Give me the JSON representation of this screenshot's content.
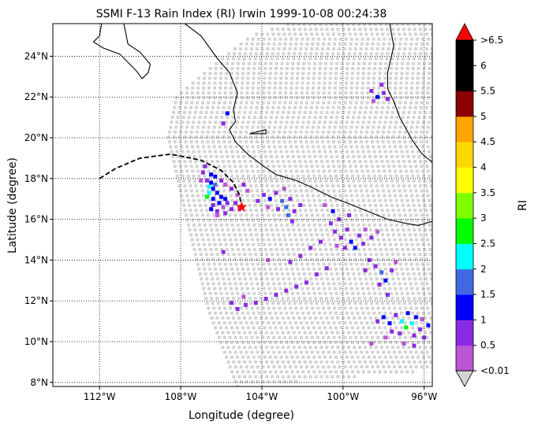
{
  "chart_data": {
    "type": "heatmap",
    "title": "SSMI F-13 Rain Index (RI) Irwin 1999-10-08 00:24:38",
    "xlabel": "Longitude (degree)",
    "ylabel": "Latitude (degree)",
    "xlim": [
      -114.3,
      -95.6
    ],
    "ylim": [
      7.8,
      25.6
    ],
    "x_ticks": [
      {
        "value": -112,
        "label": "112°W"
      },
      {
        "value": -108,
        "label": "108°W"
      },
      {
        "value": -104,
        "label": "104°W"
      },
      {
        "value": -100,
        "label": "100°W"
      },
      {
        "value": -96,
        "label": "96°W"
      }
    ],
    "y_ticks": [
      {
        "value": 8,
        "label": "8°N"
      },
      {
        "value": 10,
        "label": "10°N"
      },
      {
        "value": 12,
        "label": "12°N"
      },
      {
        "value": 14,
        "label": "14°N"
      },
      {
        "value": 16,
        "label": "16°N"
      },
      {
        "value": 18,
        "label": "18°N"
      },
      {
        "value": 20,
        "label": "20°N"
      },
      {
        "value": 22,
        "label": "22°N"
      },
      {
        "value": 24,
        "label": "24°N"
      }
    ],
    "grid": "dotted",
    "no_rain_color": "#d3d3d3",
    "colorbar": {
      "label": "RI",
      "levels": [
        0.01,
        0.5,
        1,
        1.5,
        2,
        2.5,
        3,
        3.5,
        4,
        4.5,
        5,
        5.5,
        6,
        6.5
      ],
      "colors": [
        "#ba55d3",
        "#8a2be2",
        "#0000ff",
        "#4169e1",
        "#00ffff",
        "#00ff00",
        "#7fff00",
        "#ffff00",
        "#ffd700",
        "#ffa500",
        "#8b0000",
        "#000000",
        "#000000"
      ],
      "under_color": "#d3d3d3",
      "over_color": "#ff0000",
      "tick_labels": [
        {
          "value": 0.01,
          "label": "<0.01"
        },
        {
          "value": 0.5,
          "label": "0.5"
        },
        {
          "value": 1,
          "label": "1"
        },
        {
          "value": 1.5,
          "label": "1.5"
        },
        {
          "value": 2,
          "label": "2"
        },
        {
          "value": 2.5,
          "label": "2.5"
        },
        {
          "value": 3,
          "label": "3"
        },
        {
          "value": 3.5,
          "label": "3.5"
        },
        {
          "value": 4,
          "label": "4"
        },
        {
          "value": 4.5,
          "label": "4.5"
        },
        {
          "value": 5,
          "label": "5"
        },
        {
          "value": 5.5,
          "label": "5.5"
        },
        {
          "value": 6,
          "label": "6"
        },
        {
          "value": 6.5,
          "label": ">6.5"
        }
      ]
    },
    "swath": {
      "west_edge": [
        [
          -105.2,
          7.8
        ],
        [
          -106.6,
          11.5
        ],
        [
          -107.8,
          16.5
        ],
        [
          -108.6,
          20.0
        ],
        [
          -108.2,
          22.0
        ],
        [
          -106.3,
          23.6
        ],
        [
          -104.5,
          25.0
        ],
        [
          -102.6,
          25.6
        ]
      ],
      "south_edge": [
        [
          -105.2,
          7.8
        ],
        [
          -95.6,
          8.6
        ]
      ]
    },
    "coastline": [
      [
        [
          -111.9,
          25.6
        ],
        [
          -112.0,
          25.0
        ],
        [
          -112.3,
          24.7
        ],
        [
          -111.8,
          24.4
        ],
        [
          -111.0,
          24.1
        ],
        [
          -110.2,
          23.3
        ],
        [
          -109.9,
          22.9
        ],
        [
          -109.6,
          23.2
        ],
        [
          -109.5,
          23.6
        ],
        [
          -110.0,
          24.2
        ],
        [
          -110.6,
          24.6
        ],
        [
          -110.8,
          25.6
        ]
      ],
      [
        [
          -107.8,
          25.6
        ],
        [
          -107.0,
          25.0
        ],
        [
          -106.2,
          23.9
        ],
        [
          -105.6,
          23.2
        ],
        [
          -105.2,
          22.2
        ],
        [
          -105.4,
          21.4
        ],
        [
          -105.3,
          20.8
        ],
        [
          -105.6,
          20.4
        ],
        [
          -105.3,
          19.8
        ],
        [
          -104.7,
          19.2
        ],
        [
          -103.9,
          18.6
        ],
        [
          -103.3,
          18.2
        ],
        [
          -102.3,
          17.9
        ],
        [
          -101.6,
          17.6
        ],
        [
          -100.6,
          17.1
        ],
        [
          -99.8,
          16.8
        ],
        [
          -98.8,
          16.4
        ],
        [
          -97.8,
          16.0
        ],
        [
          -96.9,
          15.8
        ],
        [
          -96.3,
          15.7
        ],
        [
          -95.6,
          15.9
        ]
      ],
      [
        [
          -97.7,
          25.6
        ],
        [
          -97.5,
          24.5
        ],
        [
          -97.8,
          23.2
        ],
        [
          -97.8,
          22.4
        ],
        [
          -97.5,
          21.8
        ],
        [
          -97.2,
          21.0
        ],
        [
          -96.6,
          19.9
        ],
        [
          -96.1,
          19.2
        ],
        [
          -95.6,
          18.8
        ]
      ]
    ],
    "islands": [
      [
        [
          -104.6,
          20.2
        ],
        [
          -103.8,
          20.4
        ],
        [
          -103.8,
          20.2
        ],
        [
          -104.6,
          20.2
        ]
      ]
    ],
    "storm_track": [
      [
        -112.0,
        18.0
      ],
      [
        -111.2,
        18.5
      ],
      [
        -110.0,
        19.0
      ],
      [
        -108.5,
        19.2
      ],
      [
        -107.0,
        18.9
      ],
      [
        -106.0,
        18.4
      ],
      [
        -105.4,
        17.8
      ],
      [
        -105.1,
        17.2
      ],
      [
        -105.0,
        16.6
      ]
    ],
    "storm_position": [
      -105.0,
      16.6
    ],
    "rain_cells": [
      {
        "lon": -106.5,
        "lat": 18.2,
        "ri": 1.2
      },
      {
        "lon": -106.3,
        "lat": 18.1,
        "ri": 1.1
      },
      {
        "lon": -106.7,
        "lat": 17.9,
        "ri": 0.9
      },
      {
        "lon": -106.5,
        "lat": 17.8,
        "ri": 1.3
      },
      {
        "lon": -106.3,
        "lat": 17.7,
        "ri": 1.6
      },
      {
        "lon": -106.6,
        "lat": 17.6,
        "ri": 2.0
      },
      {
        "lon": -106.4,
        "lat": 17.5,
        "ri": 1.2
      },
      {
        "lon": -106.6,
        "lat": 17.3,
        "ri": 2.3
      },
      {
        "lon": -106.7,
        "lat": 17.1,
        "ri": 2.6
      },
      {
        "lon": -106.4,
        "lat": 17.0,
        "ri": 1.0
      },
      {
        "lon": -106.2,
        "lat": 17.3,
        "ri": 1.1
      },
      {
        "lon": -106.0,
        "lat": 17.1,
        "ri": 1.3
      },
      {
        "lon": -105.8,
        "lat": 17.0,
        "ri": 1.1
      },
      {
        "lon": -105.7,
        "lat": 16.8,
        "ri": 0.7
      },
      {
        "lon": -106.1,
        "lat": 16.8,
        "ri": 1.2
      },
      {
        "lon": -106.4,
        "lat": 16.7,
        "ri": 0.8
      },
      {
        "lon": -106.5,
        "lat": 16.5,
        "ri": 1.1
      },
      {
        "lon": -106.2,
        "lat": 16.4,
        "ri": 0.6
      },
      {
        "lon": -105.9,
        "lat": 16.6,
        "ri": 0.4
      },
      {
        "lon": -105.5,
        "lat": 16.5,
        "ri": 0.5
      },
      {
        "lon": -105.3,
        "lat": 16.8,
        "ri": 0.6
      },
      {
        "lon": -105.2,
        "lat": 17.2,
        "ri": 0.4
      },
      {
        "lon": -105.5,
        "lat": 17.5,
        "ri": 0.7
      },
      {
        "lon": -105.8,
        "lat": 17.7,
        "ri": 0.3
      },
      {
        "lon": -106.0,
        "lat": 17.9,
        "ri": 0.8
      },
      {
        "lon": -106.9,
        "lat": 18.3,
        "ri": 0.7
      },
      {
        "lon": -107.0,
        "lat": 17.9,
        "ri": 0.4
      },
      {
        "lon": -106.8,
        "lat": 18.6,
        "ri": 0.9
      },
      {
        "lon": -106.2,
        "lat": 16.2,
        "ri": 0.3
      },
      {
        "lon": -105.8,
        "lat": 16.3,
        "ri": 0.6
      },
      {
        "lon": -104.9,
        "lat": 17.7,
        "ri": 0.5
      },
      {
        "lon": -104.7,
        "lat": 17.4,
        "ri": 0.3
      },
      {
        "lon": -105.1,
        "lat": 16.5,
        "ri": 0.4
      },
      {
        "lon": -103.9,
        "lat": 17.2,
        "ri": 0.8
      },
      {
        "lon": -103.6,
        "lat": 17.0,
        "ri": 1.2
      },
      {
        "lon": -103.3,
        "lat": 17.3,
        "ri": 0.9
      },
      {
        "lon": -103.0,
        "lat": 16.9,
        "ri": 1.7
      },
      {
        "lon": -102.8,
        "lat": 16.6,
        "ri": 1.8
      },
      {
        "lon": -103.2,
        "lat": 16.5,
        "ri": 0.7
      },
      {
        "lon": -102.6,
        "lat": 17.0,
        "ri": 0.6
      },
      {
        "lon": -102.4,
        "lat": 16.4,
        "ri": 0.9
      },
      {
        "lon": -102.7,
        "lat": 16.2,
        "ri": 1.6
      },
      {
        "lon": -102.5,
        "lat": 15.9,
        "ri": 0.7
      },
      {
        "lon": -104.2,
        "lat": 16.9,
        "ri": 0.5
      },
      {
        "lon": -103.7,
        "lat": 16.6,
        "ri": 0.4
      },
      {
        "lon": -102.1,
        "lat": 16.7,
        "ri": 0.5
      },
      {
        "lon": -102.9,
        "lat": 17.5,
        "ri": 0.3
      },
      {
        "lon": -105.7,
        "lat": 21.2,
        "ri": 1.1
      },
      {
        "lon": -105.9,
        "lat": 20.7,
        "ri": 0.6
      },
      {
        "lon": -100.9,
        "lat": 16.7,
        "ri": 0.4
      },
      {
        "lon": -100.5,
        "lat": 16.4,
        "ri": 1.0
      },
      {
        "lon": -100.2,
        "lat": 16.0,
        "ri": 0.7
      },
      {
        "lon": -100.6,
        "lat": 15.8,
        "ri": 0.5
      },
      {
        "lon": -100.4,
        "lat": 15.4,
        "ri": 0.9
      },
      {
        "lon": -100.1,
        "lat": 15.1,
        "ri": 0.6
      },
      {
        "lon": -99.8,
        "lat": 15.5,
        "ri": 0.5
      },
      {
        "lon": -99.6,
        "lat": 14.9,
        "ri": 1.1
      },
      {
        "lon": -99.4,
        "lat": 14.6,
        "ri": 1.0
      },
      {
        "lon": -99.0,
        "lat": 14.8,
        "ri": 0.8
      },
      {
        "lon": -99.2,
        "lat": 15.2,
        "ri": 0.6
      },
      {
        "lon": -98.9,
        "lat": 15.5,
        "ri": 0.4
      },
      {
        "lon": -99.9,
        "lat": 14.6,
        "ri": 0.7
      },
      {
        "lon": -100.3,
        "lat": 14.7,
        "ri": 0.3
      },
      {
        "lon": -98.6,
        "lat": 15.1,
        "ri": 0.5
      },
      {
        "lon": -98.3,
        "lat": 15.4,
        "ri": 0.4
      },
      {
        "lon": -99.7,
        "lat": 16.2,
        "ri": 0.6
      },
      {
        "lon": -98.7,
        "lat": 14.0,
        "ri": 0.6
      },
      {
        "lon": -98.4,
        "lat": 13.7,
        "ri": 0.9
      },
      {
        "lon": -98.1,
        "lat": 13.4,
        "ri": 1.7
      },
      {
        "lon": -97.9,
        "lat": 13.0,
        "ri": 1.3
      },
      {
        "lon": -98.2,
        "lat": 12.8,
        "ri": 0.5
      },
      {
        "lon": -97.6,
        "lat": 13.5,
        "ri": 0.7
      },
      {
        "lon": -97.4,
        "lat": 13.9,
        "ri": 0.4
      },
      {
        "lon": -98.9,
        "lat": 13.5,
        "ri": 0.5
      },
      {
        "lon": -97.8,
        "lat": 12.3,
        "ri": 0.5
      },
      {
        "lon": -98.0,
        "lat": 11.2,
        "ri": 1.1
      },
      {
        "lon": -97.7,
        "lat": 10.9,
        "ri": 1.3
      },
      {
        "lon": -97.4,
        "lat": 11.3,
        "ri": 0.9
      },
      {
        "lon": -97.1,
        "lat": 11.0,
        "ri": 2.2
      },
      {
        "lon": -96.9,
        "lat": 10.7,
        "ri": 2.7
      },
      {
        "lon": -96.6,
        "lat": 10.9,
        "ri": 2.4
      },
      {
        "lon": -96.4,
        "lat": 11.2,
        "ri": 1.2
      },
      {
        "lon": -96.8,
        "lat": 11.4,
        "ri": 1.0
      },
      {
        "lon": -96.2,
        "lat": 10.6,
        "ri": 0.8
      },
      {
        "lon": -96.0,
        "lat": 10.2,
        "ri": 0.6
      },
      {
        "lon": -96.5,
        "lat": 10.3,
        "ri": 0.9
      },
      {
        "lon": -97.2,
        "lat": 10.4,
        "ri": 0.7
      },
      {
        "lon": -97.6,
        "lat": 10.5,
        "ri": 0.5
      },
      {
        "lon": -98.3,
        "lat": 11.0,
        "ri": 0.8
      },
      {
        "lon": -95.8,
        "lat": 10.8,
        "ri": 1.1
      },
      {
        "lon": -96.1,
        "lat": 11.1,
        "ri": 0.4
      },
      {
        "lon": -97.9,
        "lat": 10.2,
        "ri": 0.3
      },
      {
        "lon": -100.8,
        "lat": 13.6,
        "ri": 0.5
      },
      {
        "lon": -101.3,
        "lat": 13.3,
        "ri": 0.6
      },
      {
        "lon": -101.8,
        "lat": 12.9,
        "ri": 0.5
      },
      {
        "lon": -102.3,
        "lat": 12.7,
        "ri": 0.7
      },
      {
        "lon": -102.8,
        "lat": 12.5,
        "ri": 0.5
      },
      {
        "lon": -103.3,
        "lat": 12.3,
        "ri": 0.6
      },
      {
        "lon": -103.8,
        "lat": 12.1,
        "ri": 0.5
      },
      {
        "lon": -104.3,
        "lat": 11.9,
        "ri": 0.7
      },
      {
        "lon": -104.8,
        "lat": 11.8,
        "ri": 0.6
      },
      {
        "lon": -105.2,
        "lat": 11.6,
        "ri": 0.8
      },
      {
        "lon": -105.5,
        "lat": 11.9,
        "ri": 0.5
      },
      {
        "lon": -104.9,
        "lat": 12.2,
        "ri": 0.4
      },
      {
        "lon": -102.1,
        "lat": 14.2,
        "ri": 0.5
      },
      {
        "lon": -102.6,
        "lat": 13.9,
        "ri": 0.6
      },
      {
        "lon": -101.6,
        "lat": 14.6,
        "ri": 0.5
      },
      {
        "lon": -101.1,
        "lat": 14.9,
        "ri": 0.7
      },
      {
        "lon": -103.7,
        "lat": 14.0,
        "ri": 0.4
      },
      {
        "lon": -105.9,
        "lat": 14.4,
        "ri": 0.5
      },
      {
        "lon": -98.6,
        "lat": 22.3,
        "ri": 0.6
      },
      {
        "lon": -98.3,
        "lat": 22.0,
        "ri": 1.3
      },
      {
        "lon": -98.0,
        "lat": 22.2,
        "ri": 0.9
      },
      {
        "lon": -98.1,
        "lat": 22.6,
        "ri": 0.5
      },
      {
        "lon": -98.5,
        "lat": 21.8,
        "ri": 0.4
      },
      {
        "lon": -97.8,
        "lat": 21.9,
        "ri": 0.7
      },
      {
        "lon": -96.5,
        "lat": 9.8,
        "ri": 0.5
      },
      {
        "lon": -97.0,
        "lat": 9.9,
        "ri": 0.4
      },
      {
        "lon": -98.6,
        "lat": 9.9,
        "ri": 0.3
      }
    ]
  }
}
